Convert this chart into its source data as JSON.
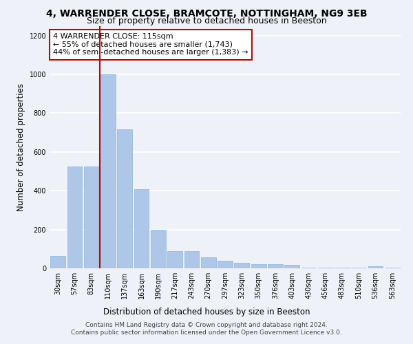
{
  "title1": "4, WARRENDER CLOSE, BRAMCOTE, NOTTINGHAM, NG9 3EB",
  "title2": "Size of property relative to detached houses in Beeston",
  "xlabel": "Distribution of detached houses by size in Beeston",
  "ylabel": "Number of detached properties",
  "categories": [
    "30sqm",
    "57sqm",
    "83sqm",
    "110sqm",
    "137sqm",
    "163sqm",
    "190sqm",
    "217sqm",
    "243sqm",
    "270sqm",
    "297sqm",
    "323sqm",
    "350sqm",
    "376sqm",
    "403sqm",
    "430sqm",
    "456sqm",
    "483sqm",
    "510sqm",
    "536sqm",
    "563sqm"
  ],
  "values": [
    65,
    525,
    525,
    1000,
    715,
    408,
    198,
    90,
    90,
    58,
    40,
    30,
    20,
    20,
    18,
    5,
    5,
    5,
    5,
    12,
    5
  ],
  "bar_color": "#aec6e8",
  "bar_edge_color": "#8ab4d8",
  "vline_color": "#cc0000",
  "vline_x": 2.5,
  "annotation_text": "4 WARRENDER CLOSE: 115sqm\n← 55% of detached houses are smaller (1,743)\n44% of semi-detached houses are larger (1,383) →",
  "annotation_box_facecolor": "#ffffff",
  "annotation_box_edgecolor": "#cc0000",
  "ylim": [
    0,
    1250
  ],
  "yticks": [
    0,
    200,
    400,
    600,
    800,
    1000,
    1200
  ],
  "footer1": "Contains HM Land Registry data © Crown copyright and database right 2024.",
  "footer2": "Contains public sector information licensed under the Open Government Licence v3.0.",
  "background_color": "#eef2f8",
  "plot_background_color": "#eef2f8",
  "grid_color": "#ffffff",
  "title1_fontsize": 10,
  "title2_fontsize": 9,
  "ylabel_fontsize": 8.5,
  "xlabel_fontsize": 8.5,
  "tick_fontsize": 7,
  "annotation_fontsize": 8,
  "footer_fontsize": 6.5
}
